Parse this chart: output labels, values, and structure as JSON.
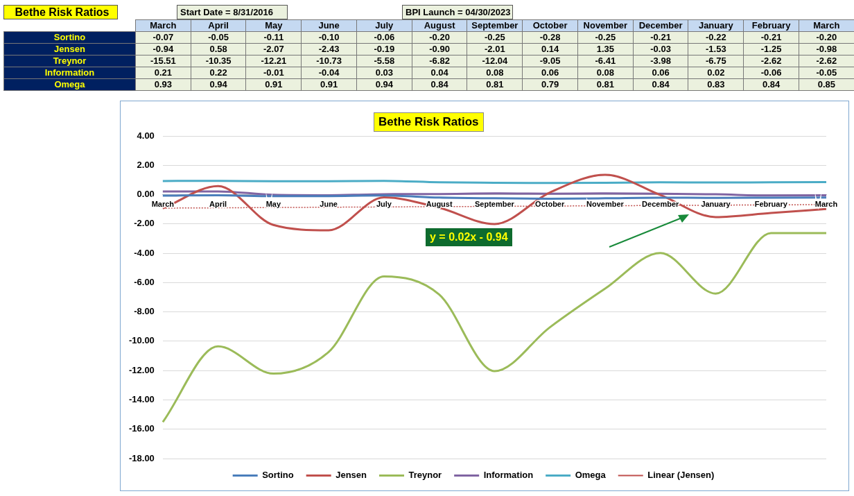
{
  "chart_data": {
    "type": "line",
    "title": "Bethe Risk Ratios",
    "categories": [
      "March",
      "April",
      "May",
      "June",
      "July",
      "August",
      "September",
      "October",
      "November",
      "December",
      "January",
      "February",
      "March"
    ],
    "series": [
      {
        "name": "Sortino",
        "color": "#4a7ebb",
        "values": [
          -0.07,
          -0.05,
          -0.11,
          -0.1,
          -0.06,
          -0.2,
          -0.25,
          -0.28,
          -0.25,
          -0.21,
          -0.22,
          -0.21,
          -0.2
        ],
        "value_labels": [
          "-0.07",
          "-0.05",
          "-0.11",
          "-0.10",
          "-0.06",
          "-0.20",
          "-0.25",
          "-0.28",
          "-0.25",
          "-0.21",
          "-0.22",
          "-0.21",
          "-0.20"
        ]
      },
      {
        "name": "Jensen",
        "color": "#c0504d",
        "values": [
          -0.94,
          0.58,
          -2.07,
          -2.43,
          -0.19,
          -0.9,
          -2.01,
          0.14,
          1.35,
          -0.03,
          -1.53,
          -1.25,
          -0.98
        ],
        "value_labels": [
          "-0.94",
          "0.58",
          "-2.07",
          "-2.43",
          "-0.19",
          "-0.90",
          "-2.01",
          "0.14",
          "1.35",
          "-0.03",
          "-1.53",
          "-1.25",
          "-0.98"
        ]
      },
      {
        "name": "Treynor",
        "color": "#9bbb59",
        "values": [
          -15.51,
          -10.35,
          -12.21,
          -10.73,
          -5.58,
          -6.82,
          -12.04,
          -9.05,
          -6.41,
          -3.98,
          -6.75,
          -2.62,
          -2.62
        ],
        "value_labels": [
          "-15.51",
          "-10.35",
          "-12.21",
          "-10.73",
          "-5.58",
          "-6.82",
          "-12.04",
          "-9.05",
          "-6.41",
          "-3.98",
          "-6.75",
          "-2.62",
          "-2.62"
        ]
      },
      {
        "name": "Information",
        "color": "#8064a2",
        "values": [
          0.21,
          0.22,
          -0.01,
          -0.04,
          0.03,
          0.04,
          0.08,
          0.06,
          0.08,
          0.06,
          0.02,
          -0.06,
          -0.05
        ],
        "value_labels": [
          "0.21",
          "0.22",
          "-0.01",
          "-0.04",
          "0.03",
          "0.04",
          "0.08",
          "0.06",
          "0.08",
          "0.06",
          "0.02",
          "-0.06",
          "-0.05"
        ]
      },
      {
        "name": "Omega",
        "color": "#4bacc6",
        "values": [
          0.93,
          0.94,
          0.91,
          0.91,
          0.94,
          0.84,
          0.81,
          0.79,
          0.81,
          0.84,
          0.83,
          0.84,
          0.85
        ],
        "value_labels": [
          "0.93",
          "0.94",
          "0.91",
          "0.91",
          "0.94",
          "0.84",
          "0.81",
          "0.79",
          "0.81",
          "0.84",
          "0.83",
          "0.84",
          "0.85"
        ]
      },
      {
        "name": "Linear (Jensen)",
        "color": "#c0504d",
        "line_style": "dotted",
        "values": [
          -0.92,
          -0.9,
          -0.88,
          -0.86,
          -0.84,
          -0.82,
          -0.8,
          -0.78,
          -0.76,
          -0.74,
          -0.72,
          -0.7,
          -0.68
        ]
      }
    ],
    "ylim": [
      -18,
      4
    ],
    "yticks": [
      {
        "value": -18,
        "label": "-18.00"
      },
      {
        "value": -16,
        "label": "-16.00"
      },
      {
        "value": -14,
        "label": "-14.00"
      },
      {
        "value": -12,
        "label": "-12.00"
      },
      {
        "value": -10,
        "label": "-10.00"
      },
      {
        "value": -8,
        "label": "-8.00"
      },
      {
        "value": -6,
        "label": "-6.00"
      },
      {
        "value": -4,
        "label": "-4.00"
      },
      {
        "value": -2,
        "label": "-2.00"
      },
      {
        "value": 0,
        "label": "0.00"
      },
      {
        "value": 2,
        "label": "2.00"
      },
      {
        "value": 4,
        "label": "4.00"
      }
    ],
    "grid": "y",
    "legend": "bottom",
    "marker": "none",
    "annotations": [
      "Bethe Risk Ratios",
      "Start Date = 8/31/2016",
      "BPI Launch = 04/30/2023",
      "y = 0.02x - 0.94"
    ]
  }
}
